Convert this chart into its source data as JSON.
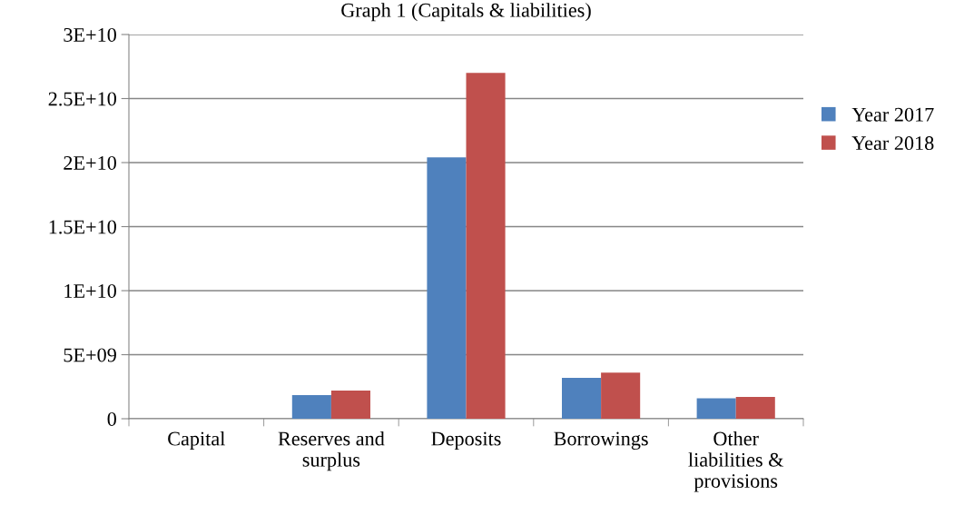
{
  "chart_data": {
    "type": "bar",
    "title": "Graph 1 (Capitals & liabilities)",
    "categories": [
      "Capital",
      "Reserves and surplus",
      "Deposits",
      "Borrowings",
      "Other liabilities & provisions"
    ],
    "series": [
      {
        "name": "Year 2017",
        "color": "#4f81bd",
        "values": [
          0,
          1850000000.0,
          20400000000.0,
          3200000000.0,
          1600000000.0
        ]
      },
      {
        "name": "Year 2018",
        "color": "#c0504d",
        "values": [
          0,
          2200000000.0,
          27000000000.0,
          3600000000.0,
          1700000000.0
        ]
      }
    ],
    "ylim": [
      0,
      30000000000.0
    ],
    "yticks": [
      {
        "value": 0,
        "label": "0"
      },
      {
        "value": 5000000000.0,
        "label": "5E+09"
      },
      {
        "value": 10000000000.0,
        "label": "1E+10"
      },
      {
        "value": 15000000000.0,
        "label": "1.5E+10"
      },
      {
        "value": 20000000000.0,
        "label": "2E+10"
      },
      {
        "value": 25000000000.0,
        "label": "2.5E+10"
      },
      {
        "value": 30000000000.0,
        "label": "3E+10"
      }
    ],
    "grid": "y",
    "legend": "right"
  }
}
